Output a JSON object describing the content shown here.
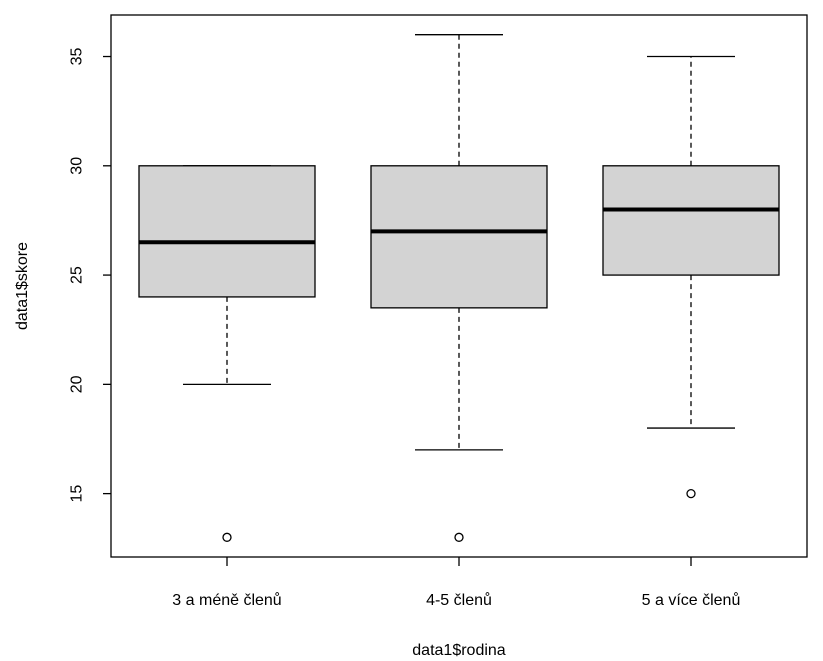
{
  "chart_data": {
    "type": "boxplot",
    "title": "",
    "xlabel": "data1$rodina",
    "ylabel": "data1$skore",
    "ylim": [
      12.1,
      36.9
    ],
    "yticks": [
      15,
      20,
      25,
      30,
      35
    ],
    "grid": false,
    "legend": "none",
    "colors": {
      "box_fill": "#d3d3d3",
      "stroke": "#000000",
      "background": "#ffffff"
    },
    "categories": [
      "3 a méně členů",
      "4-5 členů",
      "5 a více členů"
    ],
    "boxes": [
      {
        "category": "3 a méně členů",
        "whisker_low": 20,
        "q1": 24,
        "median": 26.5,
        "q3": 30,
        "whisker_high": 30,
        "outliers": [
          13
        ]
      },
      {
        "category": "4-5 členů",
        "whisker_low": 17,
        "q1": 23.5,
        "median": 27,
        "q3": 30,
        "whisker_high": 36,
        "outliers": [
          13
        ]
      },
      {
        "category": "5 a více členů",
        "whisker_low": 18,
        "q1": 25,
        "median": 28,
        "q3": 30,
        "whisker_high": 35,
        "outliers": [
          15
        ]
      }
    ]
  }
}
